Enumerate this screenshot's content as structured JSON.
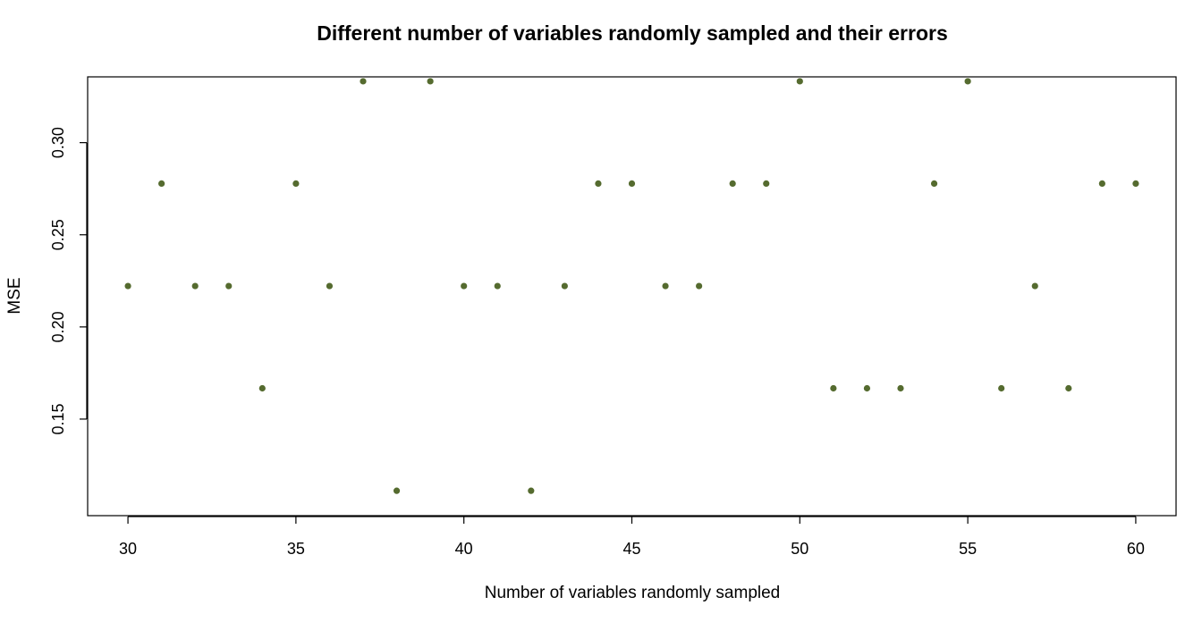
{
  "chart_data": {
    "type": "scatter",
    "title": "Different number of variables randomly sampled and their errors",
    "xlabel": "Number of variables randomly sampled",
    "ylabel": "MSE",
    "xlim": [
      28.8,
      61.2
    ],
    "ylim": [
      0.0976,
      0.3357
    ],
    "xticks": [
      30,
      35,
      40,
      45,
      50,
      55,
      60
    ],
    "xtick_labels": [
      "30",
      "35",
      "40",
      "45",
      "50",
      "55",
      "60"
    ],
    "yticks": [
      0.15,
      0.2,
      0.25,
      0.3
    ],
    "ytick_labels": [
      "0.15",
      "0.20",
      "0.25",
      "0.30"
    ],
    "grid": false,
    "legend": "none",
    "point_color": "#556B2F",
    "x": [
      30,
      31,
      32,
      33,
      34,
      35,
      36,
      37,
      38,
      39,
      40,
      41,
      42,
      43,
      44,
      45,
      46,
      47,
      48,
      49,
      50,
      51,
      52,
      53,
      54,
      55,
      56,
      57,
      58,
      59,
      60
    ],
    "y": [
      0.2222,
      0.2778,
      0.2222,
      0.2222,
      0.1667,
      0.2778,
      0.2222,
      0.3333,
      0.1111,
      0.3333,
      0.2222,
      0.2222,
      0.1111,
      0.2222,
      0.2778,
      0.2778,
      0.2222,
      0.2222,
      0.2778,
      0.2778,
      0.3333,
      0.1667,
      0.1667,
      0.1667,
      0.2778,
      0.3333,
      0.1667,
      0.2222,
      0.1667,
      0.2778,
      0.2778
    ]
  }
}
